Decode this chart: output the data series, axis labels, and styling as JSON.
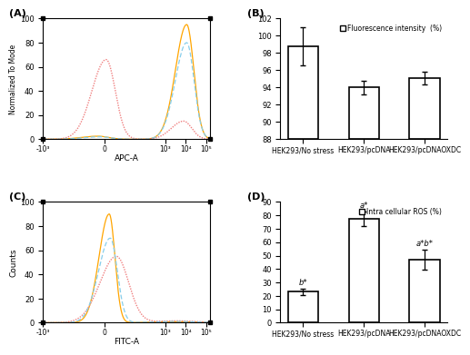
{
  "panel_A": {
    "label": "(A)",
    "xlabel": "APC-A",
    "ylabel": "Normalized To Mode",
    "xlim": [
      -3,
      5.2
    ],
    "ylim": [
      0,
      100
    ],
    "xtick_positions": [
      -3,
      0,
      3,
      4,
      5
    ],
    "xtick_labels": [
      "-10³",
      "0",
      "10³",
      "10⁴",
      "10⁵"
    ],
    "yticks": [
      0,
      20,
      40,
      60,
      80,
      100
    ]
  },
  "panel_B": {
    "label": "(B)",
    "legend_label": "Fluorescence intensity  (%)",
    "ylim": [
      88,
      102
    ],
    "yticks": [
      88,
      90,
      92,
      94,
      96,
      98,
      100,
      102
    ],
    "categories": [
      "HEK293/No stress",
      "HEK293/pcDNA",
      "HEK293/pcDNAOXDC"
    ],
    "values": [
      98.8,
      94.0,
      95.1
    ],
    "errors": [
      2.2,
      0.8,
      0.7
    ]
  },
  "panel_C": {
    "label": "(C)",
    "xlabel": "FITC-A",
    "ylabel": "Counts",
    "xlim": [
      -3,
      5.2
    ],
    "ylim": [
      0,
      100
    ],
    "xtick_positions": [
      -3,
      0,
      3,
      4,
      5
    ],
    "xtick_labels": [
      "-10³",
      "0",
      "10³",
      "10⁴",
      "10⁵"
    ],
    "yticks": [
      0,
      20,
      40,
      60,
      80,
      100
    ]
  },
  "panel_D": {
    "label": "(D)",
    "legend_label": "Intra cellular ROS (%)",
    "ylim": [
      0,
      90
    ],
    "yticks": [
      0,
      10,
      20,
      30,
      40,
      50,
      60,
      70,
      80,
      90
    ],
    "categories": [
      "HEK293/No stress",
      "HEK293/pcDNA",
      "HEK293/pcDNAOXDC"
    ],
    "values": [
      23.0,
      77.5,
      47.0
    ],
    "errors": [
      2.5,
      5.5,
      7.5
    ],
    "annotations": [
      "b*",
      "a*",
      "a*b*"
    ]
  },
  "line_colors": [
    "#FFA500",
    "#F08080",
    "#87CEEB"
  ],
  "line_styles_A": [
    "solid",
    "dotted",
    "dashed"
  ],
  "line_styles_C": [
    "solid",
    "dotted",
    "dashed"
  ],
  "bar_facecolor": "white",
  "bar_edgecolor": "black",
  "bar_linewidth": 1.2,
  "bar_width": 0.5,
  "background_color": "white"
}
